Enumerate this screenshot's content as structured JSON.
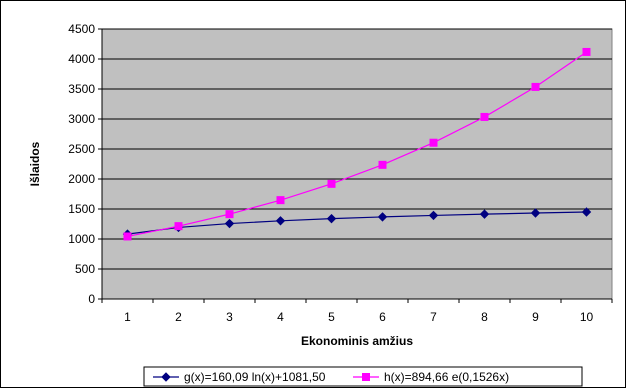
{
  "chart_data": {
    "type": "line",
    "xlabel": "Ekonominis amžius",
    "ylabel": "Išlaidos",
    "categories": [
      "1",
      "2",
      "3",
      "4",
      "5",
      "6",
      "7",
      "8",
      "9",
      "10"
    ],
    "ylim": [
      0,
      4500
    ],
    "yticks": [
      0,
      500,
      1000,
      1500,
      2000,
      2500,
      3000,
      3500,
      4000,
      4500
    ],
    "grid": true,
    "legend_position": "bottom",
    "series": [
      {
        "name": "g(x)=160,09 ln(x)+1081,50",
        "color": "#000080",
        "marker": "diamond",
        "values": [
          1081.5,
          1192.5,
          1257.4,
          1303.4,
          1339.2,
          1368.3,
          1393.0,
          1414.4,
          1433.2,
          1450.1
        ]
      },
      {
        "name": "h(x)=894,66 e(0,1526x)",
        "color": "#ff00ff",
        "marker": "square",
        "values": [
          1042.2,
          1214.1,
          1414.3,
          1647.6,
          1919.4,
          2235.9,
          2604.7,
          3034.3,
          3534.7,
          4117.6
        ]
      }
    ],
    "plot_background": "#c0c0c0"
  }
}
